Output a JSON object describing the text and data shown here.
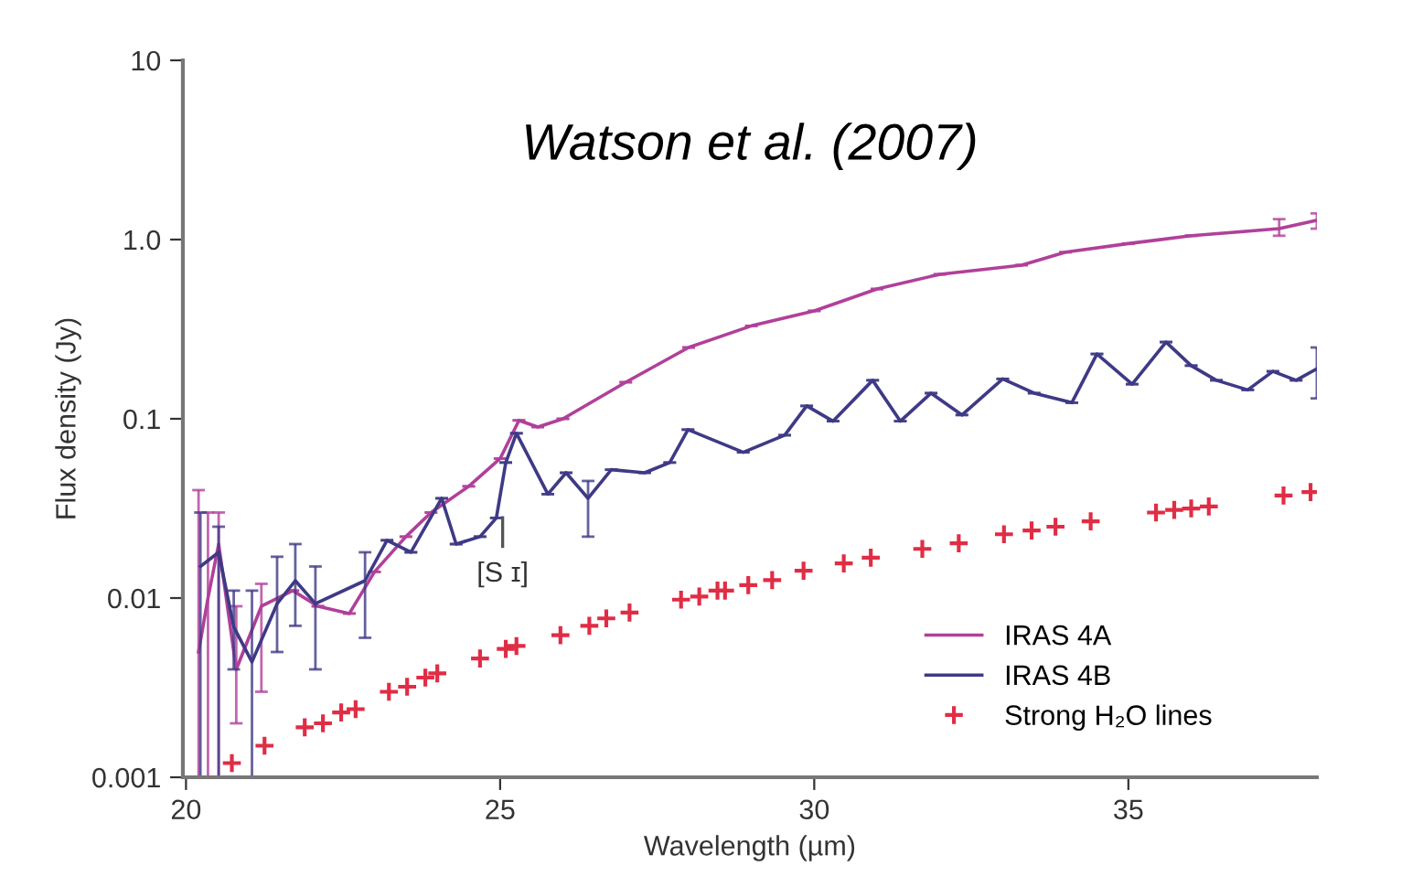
{
  "chart_data": {
    "type": "line",
    "title": "Watson et al. (2007)",
    "xlabel": "Wavelength (µm)",
    "ylabel": "Flux density (Jy)",
    "xlim": [
      19.95,
      38
    ],
    "xticks": [
      20,
      25,
      30,
      35
    ],
    "ylim": [
      0.001,
      10
    ],
    "yticks": [
      {
        "value": 0.001,
        "label": "0.001"
      },
      {
        "value": 0.01,
        "label": "0.01"
      },
      {
        "value": 0.1,
        "label": "0.1"
      },
      {
        "value": 1,
        "label": "1.0"
      },
      {
        "value": 10,
        "label": "10"
      }
    ],
    "log": "y",
    "grid": false,
    "legend": "bottom right",
    "marker": "none",
    "line_style": "solid",
    "annotations": [
      "[S ɪ]"
    ],
    "series": [
      {
        "name": "IRAS 4A",
        "color": "#b0409a",
        "x": [
          20.2,
          20.35,
          20.52,
          20.8,
          21.2,
          21.7,
          22.1,
          22.6,
          23.0,
          23.5,
          23.9,
          24.5,
          25.0,
          25.3,
          25.6,
          26.0,
          27.0,
          28.0,
          29.0,
          30.0,
          31.0,
          32.0,
          33.3,
          34.0,
          35.0,
          36.0,
          37.4,
          38.0
        ],
        "values": [
          0.005,
          0.01,
          0.02,
          0.004,
          0.009,
          0.011,
          0.009,
          0.0082,
          0.014,
          0.022,
          0.03,
          0.042,
          0.06,
          0.098,
          0.09,
          0.1,
          0.16,
          0.25,
          0.33,
          0.4,
          0.53,
          0.64,
          0.72,
          0.85,
          0.95,
          1.05,
          1.15,
          1.28
        ],
        "errors": [
          [
            0.001,
            0.04
          ],
          [
            0.001,
            0.03
          ],
          [
            0.001,
            0.03
          ],
          [
            0.002,
            0.009
          ],
          [
            0.003,
            0.012
          ],
          null,
          null,
          null,
          null,
          null,
          null,
          null,
          null,
          null,
          null,
          null,
          null,
          null,
          null,
          null,
          null,
          null,
          null,
          null,
          null,
          null,
          [
            1.05,
            1.3
          ],
          [
            1.15,
            1.4
          ]
        ]
      },
      {
        "name": "IRAS 4B",
        "color": "#3e3a85",
        "x": [
          20.23,
          20.52,
          20.76,
          21.05,
          21.45,
          21.74,
          22.06,
          22.85,
          23.2,
          23.58,
          24.07,
          24.3,
          24.68,
          24.94,
          25.09,
          25.26,
          25.76,
          26.05,
          26.4,
          26.77,
          27.3,
          27.7,
          27.99,
          28.87,
          29.53,
          29.88,
          30.3,
          30.93,
          31.37,
          31.86,
          32.35,
          33.0,
          33.5,
          34.1,
          34.5,
          35.06,
          35.6,
          36.0,
          36.4,
          36.9,
          37.3,
          37.67,
          38.0
        ],
        "values": [
          0.015,
          0.018,
          0.0069,
          0.0044,
          0.0093,
          0.0125,
          0.0093,
          0.0125,
          0.021,
          0.018,
          0.036,
          0.02,
          0.022,
          0.028,
          0.057,
          0.083,
          0.038,
          0.05,
          0.036,
          0.052,
          0.05,
          0.057,
          0.087,
          0.065,
          0.081,
          0.118,
          0.097,
          0.164,
          0.097,
          0.139,
          0.105,
          0.167,
          0.139,
          0.123,
          0.23,
          0.156,
          0.268,
          0.198,
          0.164,
          0.145,
          0.184,
          0.164,
          0.19
        ],
        "errors": [
          [
            0.001,
            0.03
          ],
          [
            0.001,
            0.025
          ],
          [
            0.004,
            0.011
          ],
          [
            0.001,
            0.011
          ],
          [
            0.005,
            0.017
          ],
          [
            0.007,
            0.02
          ],
          [
            0.004,
            0.015
          ],
          [
            0.006,
            0.018
          ],
          null,
          null,
          null,
          null,
          null,
          null,
          null,
          null,
          null,
          null,
          [
            0.022,
            0.045
          ],
          null,
          null,
          null,
          null,
          null,
          null,
          null,
          null,
          null,
          null,
          null,
          null,
          null,
          null,
          null,
          null,
          null,
          null,
          null,
          null,
          null,
          null,
          null,
          [
            0.13,
            0.25
          ]
        ]
      },
      {
        "name": "Strong H₂O lines",
        "type": "scatter",
        "marker": "cross",
        "color": "#e02d45",
        "x": [
          20.73,
          21.25,
          21.89,
          22.18,
          22.47,
          22.7,
          23.23,
          23.52,
          23.81,
          24.0,
          24.68,
          25.09,
          25.26,
          25.96,
          26.42,
          26.69,
          27.06,
          27.88,
          28.17,
          28.46,
          28.58,
          28.95,
          29.33,
          29.83,
          30.47,
          30.9,
          31.72,
          32.3,
          33.02,
          33.46,
          33.84,
          34.4,
          35.44,
          35.73,
          36.0,
          36.28,
          37.47,
          37.9
        ],
        "values": [
          0.0012,
          0.0015,
          0.0019,
          0.002,
          0.0023,
          0.0024,
          0.003,
          0.0032,
          0.0036,
          0.0038,
          0.0046,
          0.0052,
          0.0054,
          0.0062,
          0.007,
          0.0077,
          0.0083,
          0.0098,
          0.0102,
          0.011,
          0.011,
          0.0118,
          0.0126,
          0.0142,
          0.0156,
          0.0168,
          0.0188,
          0.0202,
          0.0227,
          0.0238,
          0.025,
          0.0268,
          0.03,
          0.031,
          0.0316,
          0.0324,
          0.0373,
          0.039
        ]
      }
    ]
  }
}
